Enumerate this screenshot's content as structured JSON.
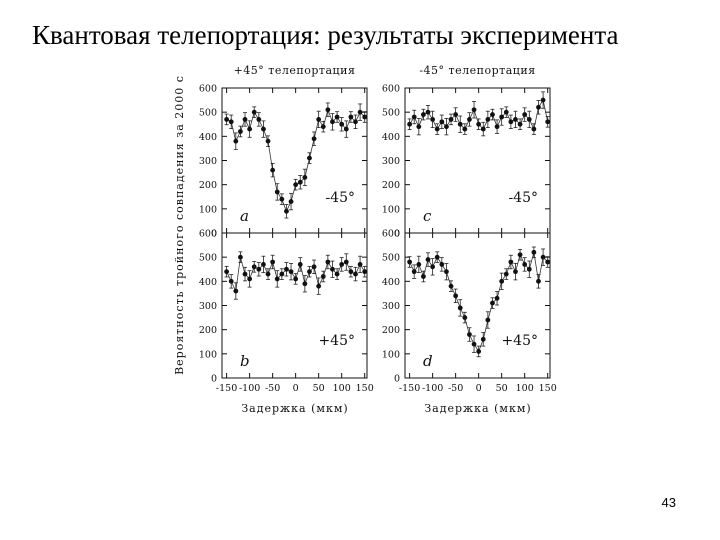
{
  "slide": {
    "title": "Квантовая телепортация: результаты эксперимента",
    "page_number": "43"
  },
  "chart_data": {
    "type": "scatter",
    "ylabel": "Вероятность тройного совпадения за 2000 с",
    "xlabel": "Задержка (мкм)",
    "ylim": [
      0,
      600
    ],
    "xlim": [
      -160,
      155
    ],
    "yticks": [
      "600",
      "500",
      "400",
      "300",
      "200",
      "100",
      "0"
    ],
    "xticks": [
      "-150",
      "-100",
      "-50",
      "0",
      "50",
      "100",
      "150"
    ],
    "panels": [
      {
        "title": "+45° телепортация",
        "corner": "a",
        "angle": "-45°",
        "x": [
          -150,
          -140,
          -130,
          -120,
          -110,
          -100,
          -90,
          -80,
          -70,
          -60,
          -50,
          -40,
          -30,
          -20,
          -10,
          0,
          10,
          20,
          30,
          40,
          50,
          60,
          70,
          80,
          90,
          100,
          110,
          120,
          130,
          140,
          150
        ],
        "y": [
          470,
          460,
          380,
          420,
          470,
          430,
          500,
          470,
          430,
          380,
          260,
          170,
          140,
          90,
          130,
          200,
          210,
          230,
          310,
          390,
          470,
          440,
          510,
          460,
          480,
          450,
          430,
          480,
          460,
          500,
          480
        ]
      },
      {
        "title": "-45° телепортация",
        "corner": "c",
        "angle": "-45°",
        "x": [
          -150,
          -140,
          -130,
          -120,
          -110,
          -100,
          -90,
          -80,
          -70,
          -60,
          -50,
          -40,
          -30,
          -20,
          -10,
          0,
          10,
          20,
          30,
          40,
          50,
          60,
          70,
          80,
          90,
          100,
          110,
          120,
          130,
          140,
          150
        ],
        "y": [
          450,
          480,
          440,
          490,
          500,
          470,
          430,
          460,
          440,
          470,
          490,
          450,
          430,
          470,
          510,
          450,
          430,
          470,
          490,
          440,
          480,
          500,
          460,
          470,
          450,
          490,
          470,
          430,
          520,
          550,
          460
        ]
      },
      {
        "title": "",
        "corner": "b",
        "angle": "+45°",
        "x": [
          -150,
          -140,
          -130,
          -120,
          -110,
          -100,
          -90,
          -80,
          -70,
          -60,
          -50,
          -40,
          -30,
          -20,
          -10,
          0,
          10,
          20,
          30,
          40,
          50,
          60,
          70,
          80,
          90,
          100,
          110,
          120,
          130,
          140,
          150
        ],
        "y": [
          440,
          400,
          360,
          500,
          430,
          410,
          460,
          450,
          470,
          430,
          480,
          410,
          430,
          450,
          440,
          410,
          470,
          390,
          440,
          460,
          380,
          420,
          480,
          450,
          430,
          470,
          480,
          440,
          430,
          470,
          440
        ]
      },
      {
        "title": "",
        "corner": "d",
        "angle": "+45°",
        "x": [
          -150,
          -140,
          -130,
          -120,
          -110,
          -100,
          -90,
          -80,
          -70,
          -60,
          -50,
          -40,
          -30,
          -20,
          -10,
          0,
          10,
          20,
          30,
          40,
          50,
          60,
          70,
          80,
          90,
          100,
          110,
          120,
          130,
          140,
          150
        ],
        "y": [
          480,
          440,
          470,
          420,
          490,
          460,
          500,
          470,
          440,
          380,
          340,
          290,
          250,
          180,
          140,
          110,
          160,
          240,
          310,
          330,
          400,
          430,
          480,
          440,
          510,
          470,
          450,
          520,
          400,
          500,
          480
        ]
      }
    ]
  }
}
